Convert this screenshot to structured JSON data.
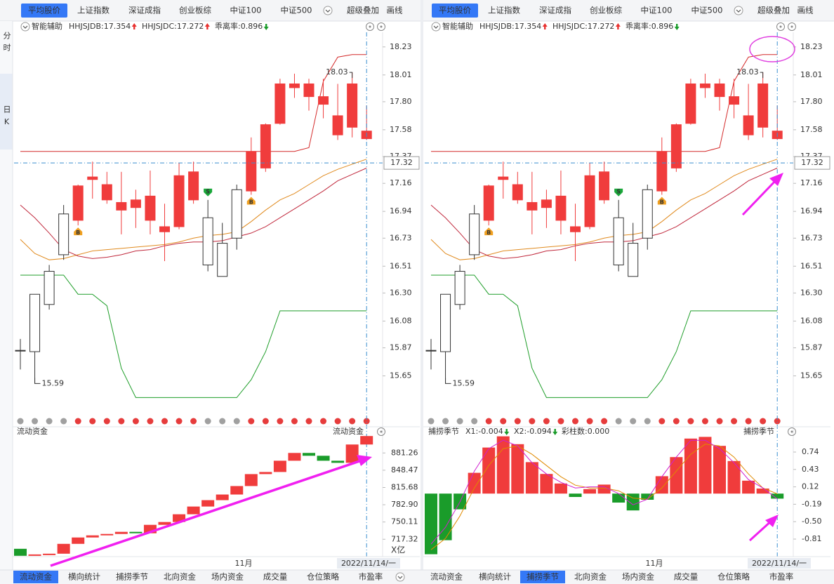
{
  "top_tabs": [
    "平均股价",
    "上证指数",
    "深证成指",
    "创业板综",
    "中证100",
    "中证500",
    "超级叠加",
    "画线"
  ],
  "side_tabs": [
    "分时",
    "日K"
  ],
  "kline": {
    "type": "candlestick",
    "header": {
      "name": "智能辅助",
      "items": [
        {
          "text": "HHJSJDB:17.354",
          "color": "#e08a00",
          "arrow": "up",
          "arrow_color": "#e8312f"
        },
        {
          "text": "HHJSJDC:17.272",
          "color": "#e8312f",
          "arrow": "up",
          "arrow_color": "#e8312f"
        },
        {
          "text": "乖离率:0.896",
          "color": "#e08a00",
          "arrow": "down",
          "arrow_color": "#1a9c2a"
        }
      ]
    },
    "ylim": [
      15.35,
      18.35
    ],
    "yticks": [
      18.23,
      18.01,
      {
        "value": 17.8,
        "label": "17.80"
      },
      17.58,
      17.37,
      17.16,
      16.94,
      16.73,
      16.51,
      {
        "value": 16.3,
        "label": "16.30"
      },
      16.08,
      15.87,
      15.65
    ],
    "open": [
      15.85,
      15.84,
      16.21,
      16.6,
      17.14,
      17.21,
      17.15,
      17.01,
      17.03,
      17.06,
      16.82,
      17.22,
      17.25,
      16.52,
      16.43,
      16.73,
      17.41,
      17.62,
      17.94,
      17.94,
      17.94,
      17.84,
      17.69,
      17.94,
      17.57
    ],
    "high": [
      15.94,
      16.29,
      16.52,
      16.99,
      17.15,
      17.33,
      17.25,
      17.25,
      17.11,
      17.26,
      17.0,
      17.32,
      17.33,
      17.03,
      16.85,
      17.15,
      17.52,
      17.63,
      17.98,
      18.02,
      17.98,
      17.98,
      17.94,
      18.03,
      17.77
    ],
    "low": [
      15.7,
      15.59,
      16.17,
      16.56,
      16.83,
      17.04,
      17.0,
      16.76,
      16.81,
      16.76,
      16.55,
      16.8,
      17.0,
      16.47,
      16.43,
      16.64,
      17.07,
      17.25,
      17.62,
      17.83,
      17.73,
      17.67,
      17.5,
      17.52,
      17.5
    ],
    "close": [
      15.85,
      16.29,
      16.47,
      16.92,
      16.87,
      17.19,
      17.03,
      16.95,
      16.97,
      16.87,
      16.78,
      16.82,
      17.03,
      16.89,
      16.69,
      17.11,
      17.1,
      17.28,
      17.63,
      17.91,
      17.84,
      17.78,
      17.54,
      17.6,
      17.51
    ],
    "hollow": [
      true,
      true,
      true,
      true,
      false,
      false,
      false,
      false,
      false,
      false,
      false,
      false,
      false,
      true,
      true,
      true,
      false,
      false,
      false,
      false,
      false,
      false,
      false,
      false,
      false
    ],
    "up_color": "#f03c3c",
    "hollow_color": "#333333",
    "lines": [
      {
        "color": "#d42a2a",
        "values": [
          17.41,
          17.41,
          17.41,
          17.41,
          17.41,
          17.41,
          17.41,
          17.41,
          17.41,
          17.41,
          17.41,
          17.41,
          17.41,
          17.41,
          17.41,
          17.41,
          17.41,
          17.41,
          17.41,
          17.41,
          17.44,
          17.96,
          18.15,
          18.17,
          18.17
        ]
      },
      {
        "color": "#1f9e2a",
        "values": [
          16.44,
          16.44,
          16.44,
          16.44,
          16.29,
          16.29,
          16.2,
          15.71,
          15.48,
          15.48,
          15.48,
          15.48,
          15.48,
          15.48,
          15.48,
          15.48,
          15.62,
          15.84,
          16.16,
          16.16,
          16.16,
          16.16,
          16.16,
          16.16,
          16.16
        ]
      },
      {
        "color": "#e08a1e",
        "values": [
          16.72,
          16.61,
          16.56,
          16.57,
          16.6,
          16.63,
          16.64,
          16.65,
          16.66,
          16.67,
          16.68,
          16.7,
          16.73,
          16.75,
          16.76,
          16.78,
          16.86,
          16.95,
          17.03,
          17.08,
          17.15,
          17.22,
          17.27,
          17.31,
          17.35
        ]
      },
      {
        "color": "#c0283c",
        "values": [
          16.99,
          16.89,
          16.77,
          16.64,
          16.59,
          16.57,
          16.58,
          16.6,
          16.63,
          16.64,
          16.67,
          16.69,
          16.7,
          16.7,
          16.71,
          16.74,
          16.77,
          16.82,
          16.89,
          16.96,
          17.03,
          17.1,
          17.18,
          17.23,
          17.28
        ]
      }
    ],
    "signals": [
      null,
      null,
      null,
      null,
      "B",
      null,
      null,
      null,
      null,
      null,
      null,
      null,
      null,
      "S",
      null,
      null,
      "B",
      null,
      null,
      null,
      null,
      null,
      null,
      null,
      null
    ],
    "signal_colors": {
      "B": "#f0a020",
      "S": "#1aa83a"
    },
    "price_line": 17.32,
    "dots": [
      "#a0a0a0",
      "#a0a0a0",
      "#a0a0a0",
      "#a0a0a0",
      "#e63c3c",
      "#e63c3c",
      "#e63c3c",
      "#e63c3c",
      "#e63c3c",
      "#e63c3c",
      "#e63c3c",
      "#e63c3c",
      "#e63c3c",
      "#a0a0a0",
      "#a0a0a0",
      "#a0a0a0",
      "#e63c3c",
      "#e63c3c",
      "#e63c3c",
      "#e63c3c",
      "#e63c3c",
      "#e63c3c",
      "#e63c3c",
      "#e63c3c",
      "#e63c3c"
    ],
    "x_label": "11月",
    "date": "2022/11/14/一"
  },
  "panels": [
    {
      "top_selected": 0,
      "bottom_tabs": [
        "流动资金",
        "横向统计",
        "捕捞季节",
        "北向资金",
        "场内资金",
        "成交量",
        "仓位策略",
        "市盈率"
      ],
      "bottom_selected": 0,
      "indicator": {
        "type": "waterfall",
        "title": "流动资金",
        "unit": "X亿",
        "start": 699.2,
        "values": [
          685.9,
          688.5,
          689.9,
          708.6,
          720.7,
          724.7,
          727.4,
          731.4,
          728.7,
          744.7,
          750.1,
          764.8,
          779.5,
          791.6,
          802.3,
          818.4,
          841.1,
          845.1,
          866.5,
          881.3,
          875.9,
          866.5,
          862.5,
          897.3,
          913.4
        ],
        "up_color": "#f03c3c",
        "down_color": "#1a9c2a",
        "ylim": [
          675,
          915
        ],
        "yticks": [
          881.26,
          848.47,
          815.68,
          {
            "value": 782.9,
            "label": "782.90"
          },
          750.11,
          717.32
        ]
      }
    },
    {
      "top_selected": 0,
      "bottom_tabs": [
        "流动资金",
        "横向统计",
        "捕捞季节",
        "北向资金",
        "场内资金",
        "成交量",
        "仓位策略",
        "市盈率"
      ],
      "bottom_selected": 2,
      "indicator": {
        "type": "bar",
        "title": "捕捞季节",
        "legend": [
          {
            "text": "X1:-0.004",
            "color": "#e08a00",
            "arrow": "down",
            "arrow_color": "#1a9c2a"
          },
          {
            "text": "X2:-0.094",
            "color": "#d020d0",
            "arrow": "down",
            "arrow_color": "#1a9c2a"
          },
          {
            "text": "彩柱数:0.000",
            "color": "#1a9c2a"
          }
        ],
        "values": [
          -1.08,
          -0.83,
          -0.28,
          0.37,
          0.82,
          1.02,
          0.88,
          0.56,
          0.35,
          0.18,
          -0.06,
          0.08,
          0.16,
          -0.16,
          -0.3,
          -0.11,
          0.31,
          0.65,
          0.98,
          1.01,
          0.85,
          0.58,
          0.23,
          0.09,
          -0.09
        ],
        "up_color": "#f03c3c",
        "down_color": "#1a9c2a",
        "series": [
          {
            "color": "#e08a00",
            "values": [
              -1.0,
              -0.8,
              -0.4,
              0.1,
              0.5,
              0.8,
              0.85,
              0.7,
              0.5,
              0.3,
              0.15,
              0.1,
              0.1,
              0.05,
              -0.08,
              -0.1,
              0.1,
              0.4,
              0.7,
              0.88,
              0.85,
              0.65,
              0.35,
              0.1,
              -0.004
            ]
          },
          {
            "color": "#d020d0",
            "values": [
              -0.9,
              -0.6,
              -0.15,
              0.4,
              0.8,
              0.95,
              0.85,
              0.55,
              0.35,
              0.2,
              0.1,
              0.12,
              0.12,
              0.0,
              -0.2,
              -0.1,
              0.3,
              0.65,
              0.95,
              0.95,
              0.8,
              0.55,
              0.25,
              0.1,
              -0.094
            ]
          }
        ],
        "ylim": [
          -1.21,
          1.04
        ],
        "yticks": [
          0.74,
          0.43,
          0.12,
          -0.19,
          {
            "value": -0.5,
            "label": "-0.50"
          },
          -0.81
        ]
      }
    }
  ]
}
